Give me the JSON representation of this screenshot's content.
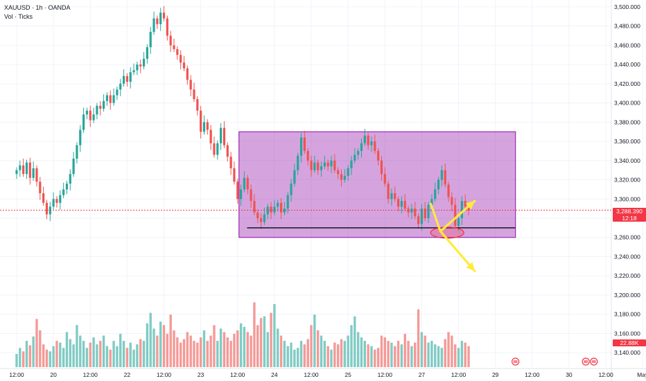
{
  "header": {
    "symbol_line": "XAUUSD · 1h · OANDA",
    "volume_line": "Vol · Ticks"
  },
  "price_badge": {
    "value": "3,288.390",
    "countdown": "12:18"
  },
  "volume_badge": {
    "value": "22.88K"
  },
  "colors": {
    "up": "#26a69a",
    "down": "#ef5350",
    "up_vol": "#80cbc4",
    "down_vol": "#f49a97",
    "range_box_fill": "#9c27b0",
    "range_box_border": "#9c27b0",
    "arrow": "#ffeb3b",
    "ellipse": "#f23645",
    "current_price_line": "#f23645"
  },
  "chart_data": {
    "type": "candlestick",
    "symbol": "XAUUSD",
    "timeframe": "1h",
    "y_ticks": [
      3140,
      3160,
      3180,
      3200,
      3220,
      3240,
      3260,
      3280,
      3300,
      3320,
      3340,
      3360,
      3380,
      3400,
      3420,
      3440,
      3460,
      3480,
      3500
    ],
    "y_tick_labels": [
      "3,140.000",
      "3,160.000",
      "3,180.000",
      "3,200.000",
      "3,220.000",
      "3,240.000",
      "3,260.000",
      "3,280.000",
      "3,300.000",
      "3,320.000",
      "3,340.000",
      "3,360.000",
      "3,380.000",
      "3,400.000",
      "3,420.000",
      "3,440.000",
      "3,460.000",
      "3,480.000",
      "3,500.000"
    ],
    "ylim": [
      3130,
      3505
    ],
    "x_ticks": [
      {
        "i": 0,
        "label": "12:00"
      },
      {
        "i": 11,
        "label": "20"
      },
      {
        "i": 22,
        "label": "12:00"
      },
      {
        "i": 33,
        "label": "22"
      },
      {
        "i": 44,
        "label": "12:00"
      },
      {
        "i": 55,
        "label": "23"
      },
      {
        "i": 66,
        "label": "12:00"
      },
      {
        "i": 77,
        "label": "24"
      },
      {
        "i": 88,
        "label": "12:00"
      },
      {
        "i": 99,
        "label": "25"
      },
      {
        "i": 110,
        "label": "12:00"
      },
      {
        "i": 121,
        "label": "27"
      },
      {
        "i": 132,
        "label": "12:00"
      },
      {
        "i": 143,
        "label": "29"
      },
      {
        "i": 154,
        "label": "12:00"
      },
      {
        "i": 165,
        "label": "30"
      },
      {
        "i": 176,
        "label": "12:00"
      },
      {
        "i": 187,
        "label": "May"
      }
    ],
    "closes": [
      3330,
      3335,
      3326,
      3338,
      3322,
      3332,
      3318,
      3306,
      3296,
      3284,
      3292,
      3300,
      3296,
      3304,
      3310,
      3316,
      3326,
      3342,
      3356,
      3372,
      3388,
      3392,
      3382,
      3388,
      3397,
      3394,
      3402,
      3408,
      3400,
      3408,
      3414,
      3420,
      3428,
      3422,
      3432,
      3434,
      3440,
      3438,
      3446,
      3458,
      3474,
      3488,
      3482,
      3494,
      3488,
      3470,
      3460,
      3456,
      3450,
      3442,
      3436,
      3424,
      3414,
      3404,
      3392,
      3370,
      3380,
      3372,
      3358,
      3346,
      3358,
      3374,
      3356,
      3344,
      3332,
      3318,
      3300,
      3310,
      3322,
      3310,
      3298,
      3286,
      3280,
      3276,
      3284,
      3292,
      3286,
      3292,
      3296,
      3286,
      3290,
      3304,
      3316,
      3330,
      3345,
      3364,
      3350,
      3340,
      3330,
      3338,
      3330,
      3334,
      3338,
      3334,
      3340,
      3330,
      3326,
      3320,
      3324,
      3332,
      3340,
      3346,
      3350,
      3358,
      3366,
      3356,
      3360,
      3350,
      3340,
      3326,
      3316,
      3300,
      3306,
      3300,
      3292,
      3298,
      3290,
      3286,
      3290,
      3282,
      3274,
      3290,
      3280,
      3294,
      3300,
      3310,
      3320,
      3330,
      3315,
      3302,
      3294,
      3272,
      3280,
      3298,
      3292,
      3288
    ],
    "volumes": [
      0.15,
      0.22,
      0.18,
      0.3,
      0.25,
      0.35,
      0.55,
      0.42,
      0.26,
      0.2,
      0.18,
      0.24,
      0.3,
      0.28,
      0.22,
      0.4,
      0.32,
      0.26,
      0.48,
      0.36,
      0.3,
      0.22,
      0.28,
      0.34,
      0.26,
      0.3,
      0.36,
      0.24,
      0.2,
      0.3,
      0.24,
      0.38,
      0.3,
      0.22,
      0.28,
      0.2,
      0.26,
      0.32,
      0.3,
      0.5,
      0.62,
      0.44,
      0.36,
      0.52,
      0.48,
      0.38,
      0.6,
      0.42,
      0.34,
      0.28,
      0.32,
      0.4,
      0.36,
      0.3,
      0.28,
      0.34,
      0.42,
      0.3,
      0.36,
      0.48,
      0.3,
      0.44,
      0.4,
      0.34,
      0.3,
      0.38,
      0.42,
      0.5,
      0.46,
      0.4,
      0.36,
      0.74,
      0.48,
      0.56,
      0.58,
      0.4,
      0.62,
      0.72,
      0.44,
      0.36,
      0.3,
      0.24,
      0.28,
      0.2,
      0.22,
      0.3,
      0.26,
      0.32,
      0.48,
      0.6,
      0.42,
      0.36,
      0.3,
      0.24,
      0.2,
      0.28,
      0.26,
      0.32,
      0.3,
      0.36,
      0.48,
      0.58,
      0.4,
      0.34,
      0.3,
      0.26,
      0.24,
      0.2,
      0.22,
      0.36,
      0.34,
      0.3,
      0.28,
      0.24,
      0.3,
      0.26,
      0.38,
      0.3,
      0.24,
      0.28,
      0.66,
      0.4,
      0.36,
      0.28,
      0.3,
      0.26,
      0.24,
      0.22,
      0.32,
      0.4,
      0.36,
      0.26,
      0.22,
      0.3,
      0.28,
      0.24
    ],
    "range_box": {
      "x_start_i": 66,
      "x_end_i": 149,
      "low": 3260,
      "high": 3370
    },
    "support_line": {
      "x_start_i": 68,
      "x_end_i": 149,
      "price": 3270
    },
    "current_price": 3288.39
  }
}
